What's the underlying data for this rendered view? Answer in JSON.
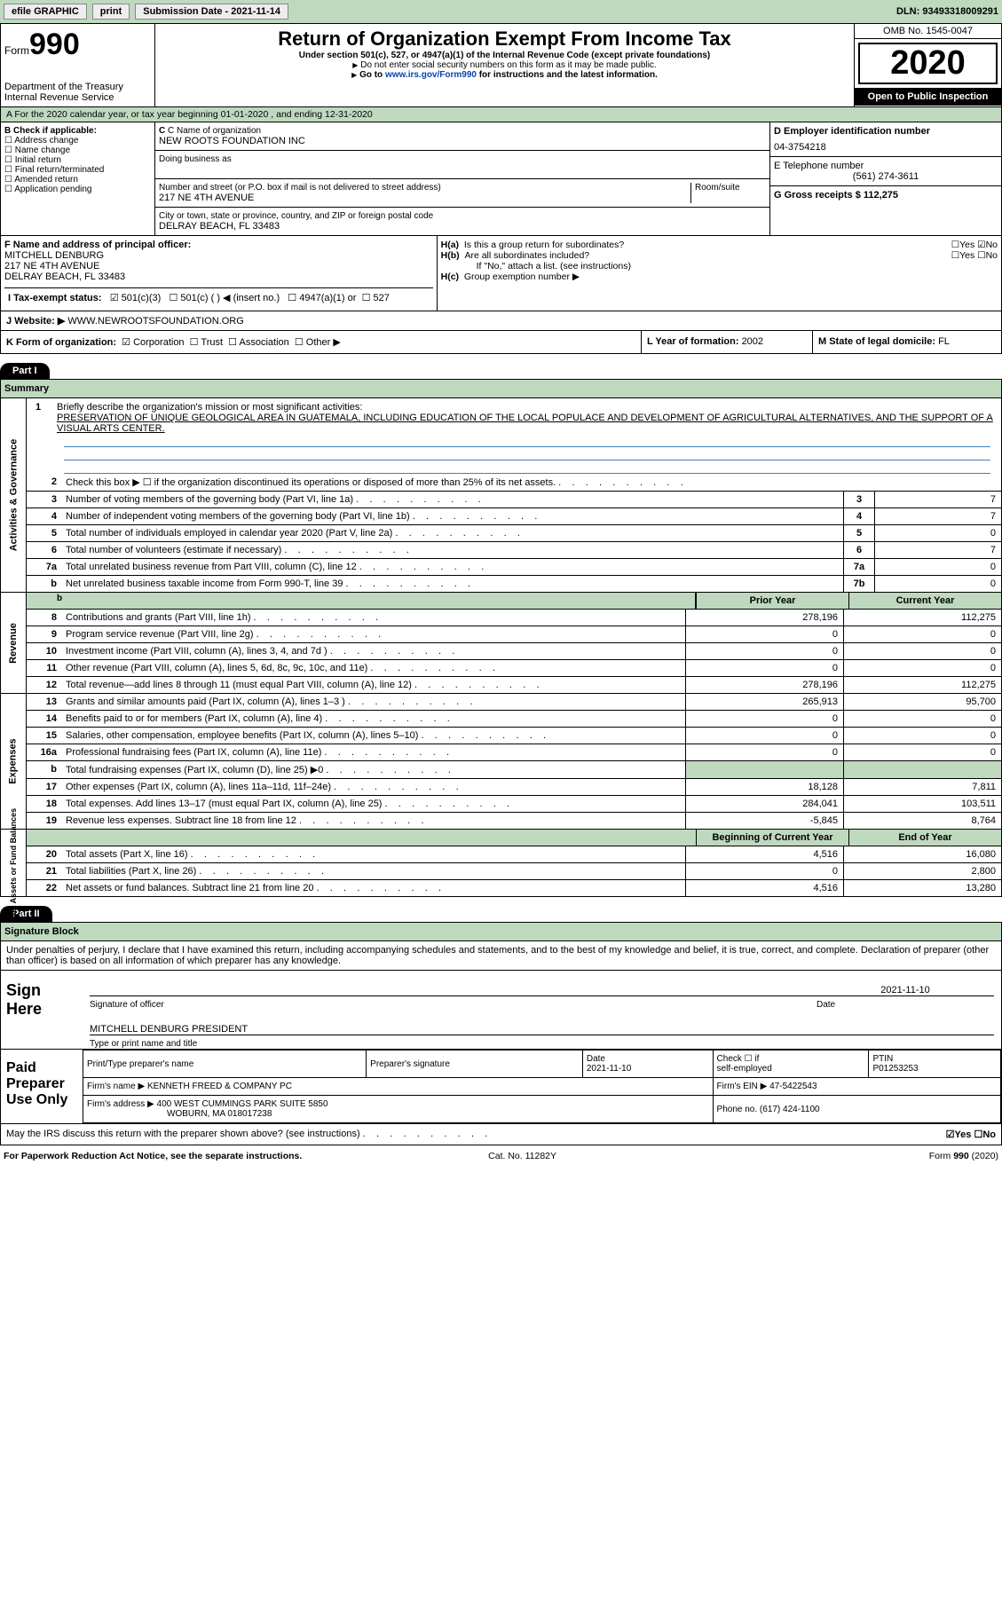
{
  "topbar": {
    "efile": "efile GRAPHIC",
    "print": "print",
    "subdate_label": "Submission Date - ",
    "subdate": "2021-11-14",
    "dln_label": "DLN: ",
    "dln": "93493318009291"
  },
  "hdr": {
    "form_word": "Form",
    "form_num": "990",
    "dept1": "Department of the Treasury",
    "dept2": "Internal Revenue Service",
    "title": "Return of Organization Exempt From Income Tax",
    "sub1": "Under section 501(c), 527, or 4947(a)(1) of the Internal Revenue Code (except private foundations)",
    "sub2": "Do not enter social security numbers on this form as it may be made public.",
    "sub3a": "Go to ",
    "sub3link": "www.irs.gov/Form990",
    "sub3b": " for instructions and the latest information.",
    "omb": "OMB No. 1545-0047",
    "year": "2020",
    "open": "Open to Public Inspection"
  },
  "rowA": "A For the 2020 calendar year, or tax year beginning 01-01-2020     , and ending 12-31-2020",
  "B": {
    "label": "B Check if applicable:",
    "items": [
      "Address change",
      "Name change",
      "Initial return",
      "Final return/terminated",
      "Amended return",
      "Application pending"
    ]
  },
  "C": {
    "label": "C Name of organization",
    "name": "NEW ROOTS FOUNDATION INC",
    "dba_label": "Doing business as",
    "addr_label": "Number and street (or P.O. box if mail is not delivered to street address)",
    "addr": "217 NE 4TH AVENUE",
    "room_label": "Room/suite",
    "city_label": "City or town, state or province, country, and ZIP or foreign postal code",
    "city": "DELRAY BEACH, FL  33483"
  },
  "D": {
    "label": "D Employer identification number",
    "val": "04-3754218"
  },
  "E": {
    "label": "E Telephone number",
    "val": "(561) 274-3611"
  },
  "G": {
    "label": "G Gross receipts $ ",
    "val": "112,275"
  },
  "F": {
    "label": "F  Name and address of principal officer:",
    "name": "MITCHELL DENBURG",
    "addr1": "217 NE 4TH AVENUE",
    "addr2": "DELRAY BEACH, FL  33483"
  },
  "H": {
    "a_label": "H(a)",
    "a_text": "Is this a group return for subordinates?",
    "a_yesno": "☐Yes ☑No",
    "b_label": "H(b)",
    "b_text": "Are all subordinates included?",
    "b_yesno": "☐Yes ☐No",
    "b_note": "If \"No,\" attach a list. (see instructions)",
    "c_label": "H(c)",
    "c_text": "Group exemption number ▶"
  },
  "I": {
    "label": "I    Tax-exempt status:",
    "opt1": "501(c)(3)",
    "opt2": "501(c) (  ) ◀ (insert no.)",
    "opt3": "4947(a)(1) or",
    "opt4": "527"
  },
  "J": {
    "label": "J    Website: ▶",
    "val": " WWW.NEWROOTSFOUNDATION.ORG"
  },
  "K": {
    "label": "K Form of organization:",
    "opts": [
      "Corporation",
      "Trust",
      "Association",
      "Other ▶"
    ]
  },
  "L": {
    "label": "L Year of formation: ",
    "val": "2002"
  },
  "M": {
    "label": "M State of legal domicile: ",
    "val": "FL"
  },
  "part1": {
    "hdr": "Part I",
    "title": "Summary"
  },
  "mission": {
    "num": "1",
    "label": "Briefly describe the organization's mission or most significant activities:",
    "text": "PRESERVATION OF UNIQUE GEOLOGICAL AREA IN GUATEMALA, INCLUDING EDUCATION OF THE LOCAL POPULACE AND DEVELOPMENT OF AGRICULTURAL ALTERNATIVES, AND THE SUPPORT OF A VISUAL ARTS CENTER."
  },
  "gov": {
    "side": "Activities & Governance",
    "rows": [
      {
        "n": "2",
        "d": "Check this box ▶ ☐  if the organization discontinued its operations or disposed of more than 25% of its net assets.",
        "box": "",
        "val": ""
      },
      {
        "n": "3",
        "d": "Number of voting members of the governing body (Part VI, line 1a)",
        "box": "3",
        "val": "7"
      },
      {
        "n": "4",
        "d": "Number of independent voting members of the governing body (Part VI, line 1b)",
        "box": "4",
        "val": "7"
      },
      {
        "n": "5",
        "d": "Total number of individuals employed in calendar year 2020 (Part V, line 2a)",
        "box": "5",
        "val": "0"
      },
      {
        "n": "6",
        "d": "Total number of volunteers (estimate if necessary)",
        "box": "6",
        "val": "7"
      },
      {
        "n": "7a",
        "d": "Total unrelated business revenue from Part VIII, column (C), line 12",
        "box": "7a",
        "val": "0"
      },
      {
        "n": "b",
        "d": "Net unrelated business taxable income from Form 990-T, line 39",
        "box": "7b",
        "val": "0"
      }
    ]
  },
  "cols": {
    "prior": "Prior Year",
    "current": "Current Year",
    "boy": "Beginning of Current Year",
    "eoy": "End of Year"
  },
  "rev": {
    "side": "Revenue",
    "rows": [
      {
        "n": "8",
        "d": "Contributions and grants (Part VIII, line 1h)",
        "p": "278,196",
        "c": "112,275"
      },
      {
        "n": "9",
        "d": "Program service revenue (Part VIII, line 2g)",
        "p": "0",
        "c": "0"
      },
      {
        "n": "10",
        "d": "Investment income (Part VIII, column (A), lines 3, 4, and 7d )",
        "p": "0",
        "c": "0"
      },
      {
        "n": "11",
        "d": "Other revenue (Part VIII, column (A), lines 5, 6d, 8c, 9c, 10c, and 11e)",
        "p": "0",
        "c": "0"
      },
      {
        "n": "12",
        "d": "Total revenue—add lines 8 through 11 (must equal Part VIII, column (A), line 12)",
        "p": "278,196",
        "c": "112,275"
      }
    ]
  },
  "exp": {
    "side": "Expenses",
    "rows": [
      {
        "n": "13",
        "d": "Grants and similar amounts paid (Part IX, column (A), lines 1–3 )",
        "p": "265,913",
        "c": "95,700"
      },
      {
        "n": "14",
        "d": "Benefits paid to or for members (Part IX, column (A), line 4)",
        "p": "0",
        "c": "0"
      },
      {
        "n": "15",
        "d": "Salaries, other compensation, employee benefits (Part IX, column (A), lines 5–10)",
        "p": "0",
        "c": "0"
      },
      {
        "n": "16a",
        "d": "Professional fundraising fees (Part IX, column (A), line 11e)",
        "p": "0",
        "c": "0"
      },
      {
        "n": "b",
        "d": "Total fundraising expenses (Part IX, column (D), line 25) ▶0",
        "p": "grey",
        "c": "grey"
      },
      {
        "n": "17",
        "d": "Other expenses (Part IX, column (A), lines 11a–11d, 11f–24e)",
        "p": "18,128",
        "c": "7,811"
      },
      {
        "n": "18",
        "d": "Total expenses. Add lines 13–17 (must equal Part IX, column (A), line 25)",
        "p": "284,041",
        "c": "103,511"
      },
      {
        "n": "19",
        "d": "Revenue less expenses. Subtract line 18 from line 12",
        "p": "-5,845",
        "c": "8,764"
      }
    ]
  },
  "net": {
    "side": "Net Assets or Fund Balances",
    "rows": [
      {
        "n": "20",
        "d": "Total assets (Part X, line 16)",
        "p": "4,516",
        "c": "16,080"
      },
      {
        "n": "21",
        "d": "Total liabilities (Part X, line 26)",
        "p": "0",
        "c": "2,800"
      },
      {
        "n": "22",
        "d": "Net assets or fund balances. Subtract line 21 from line 20",
        "p": "4,516",
        "c": "13,280"
      }
    ]
  },
  "part2": {
    "hdr": "Part II",
    "title": "Signature Block",
    "decl": "Under penalties of perjury, I declare that I have examined this return, including accompanying schedules and statements, and to the best of my knowledge and belief, it is true, correct, and complete. Declaration of preparer (other than officer) is based on all information of which preparer has any knowledge."
  },
  "sign": {
    "label": "Sign Here",
    "sig_label": "Signature of officer",
    "date_label": "Date",
    "date": "2021-11-10",
    "name": "MITCHELL DENBURG PRESIDENT",
    "type_label": "Type or print name and title"
  },
  "paid": {
    "label": "Paid Preparer Use Only",
    "h1": "Print/Type preparer's name",
    "h2": "Preparer's signature",
    "h3": "Date",
    "date": "2021-11-10",
    "h4a": "Check ☐  if",
    "h4b": "self-employed",
    "h5": "PTIN",
    "ptin": "P01253253",
    "firm_label": "Firm's name    ▶ ",
    "firm": "KENNETH FREED & COMPANY PC",
    "ein_label": "Firm's EIN ▶ ",
    "ein": "47-5422543",
    "addr_label": "Firm's address ▶ ",
    "addr1": "400 WEST CUMMINGS PARK SUITE 5850",
    "addr2": "WOBURN, MA  018017238",
    "phone_label": "Phone no. ",
    "phone": "(617) 424-1100"
  },
  "discuss": {
    "text": "May the IRS discuss this return with the preparer shown above? (see instructions)",
    "ans": "☑Yes  ☐No"
  },
  "foot": {
    "l": "For Paperwork Reduction Act Notice, see the separate instructions.",
    "m": "Cat. No. 11282Y",
    "r": "Form 990 (2020)"
  }
}
